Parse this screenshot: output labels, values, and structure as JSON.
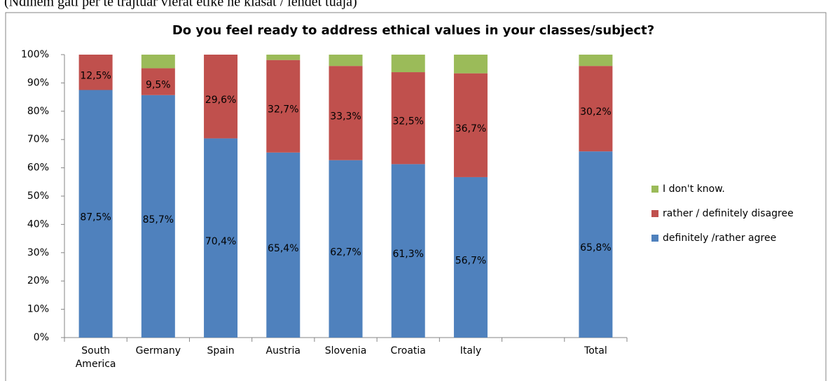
{
  "caption": "(Ndihem gati për të trajtuar vlerat etike në klasat / lëndët tuaja)",
  "chart_data": {
    "type": "stacked_bar",
    "title": "Do you feel ready to address ethical values in your classes/subject?",
    "categories": [
      "South America",
      "Germany",
      "Spain",
      "Austria",
      "Slovenia",
      "Croatia",
      "Italy",
      null,
      "Total"
    ],
    "series": [
      {
        "name": "definitely /rather agree",
        "color": "#4f81bd",
        "values": [
          87.5,
          85.7,
          70.4,
          65.4,
          62.7,
          61.3,
          56.7,
          null,
          65.8
        ],
        "value_labels": [
          "87,5%",
          "85,7%",
          "70,4%",
          "65,4%",
          "62,7%",
          "61,3%",
          "56,7%",
          null,
          "65,8%"
        ]
      },
      {
        "name": "rather / definitely disagree",
        "color": "#c0504d",
        "values": [
          12.5,
          9.5,
          29.6,
          32.7,
          33.3,
          32.5,
          36.7,
          null,
          30.2
        ],
        "value_labels": [
          "12,5%",
          "9,5%",
          "29,6%",
          "32,7%",
          "33,3%",
          "32,5%",
          "36,7%",
          null,
          "30,2%"
        ]
      },
      {
        "name": "I don't know.",
        "color": "#9bbb59",
        "values": [
          0,
          4.8,
          0,
          1.9,
          4.0,
          6.2,
          6.6,
          null,
          4.0
        ]
      }
    ],
    "ylim": [
      0,
      100
    ],
    "yticks": [
      {
        "value": 0,
        "label": "0%"
      },
      {
        "value": 10,
        "label": "10%"
      },
      {
        "value": 20,
        "label": "20%"
      },
      {
        "value": 30,
        "label": "30%"
      },
      {
        "value": 40,
        "label": "40%"
      },
      {
        "value": 50,
        "label": "50%"
      },
      {
        "value": 60,
        "label": "60%"
      },
      {
        "value": 70,
        "label": "70%"
      },
      {
        "value": 80,
        "label": "80%"
      },
      {
        "value": 90,
        "label": "90%"
      },
      {
        "value": 100,
        "label": "100%"
      }
    ],
    "grid": false,
    "legend": "right"
  }
}
